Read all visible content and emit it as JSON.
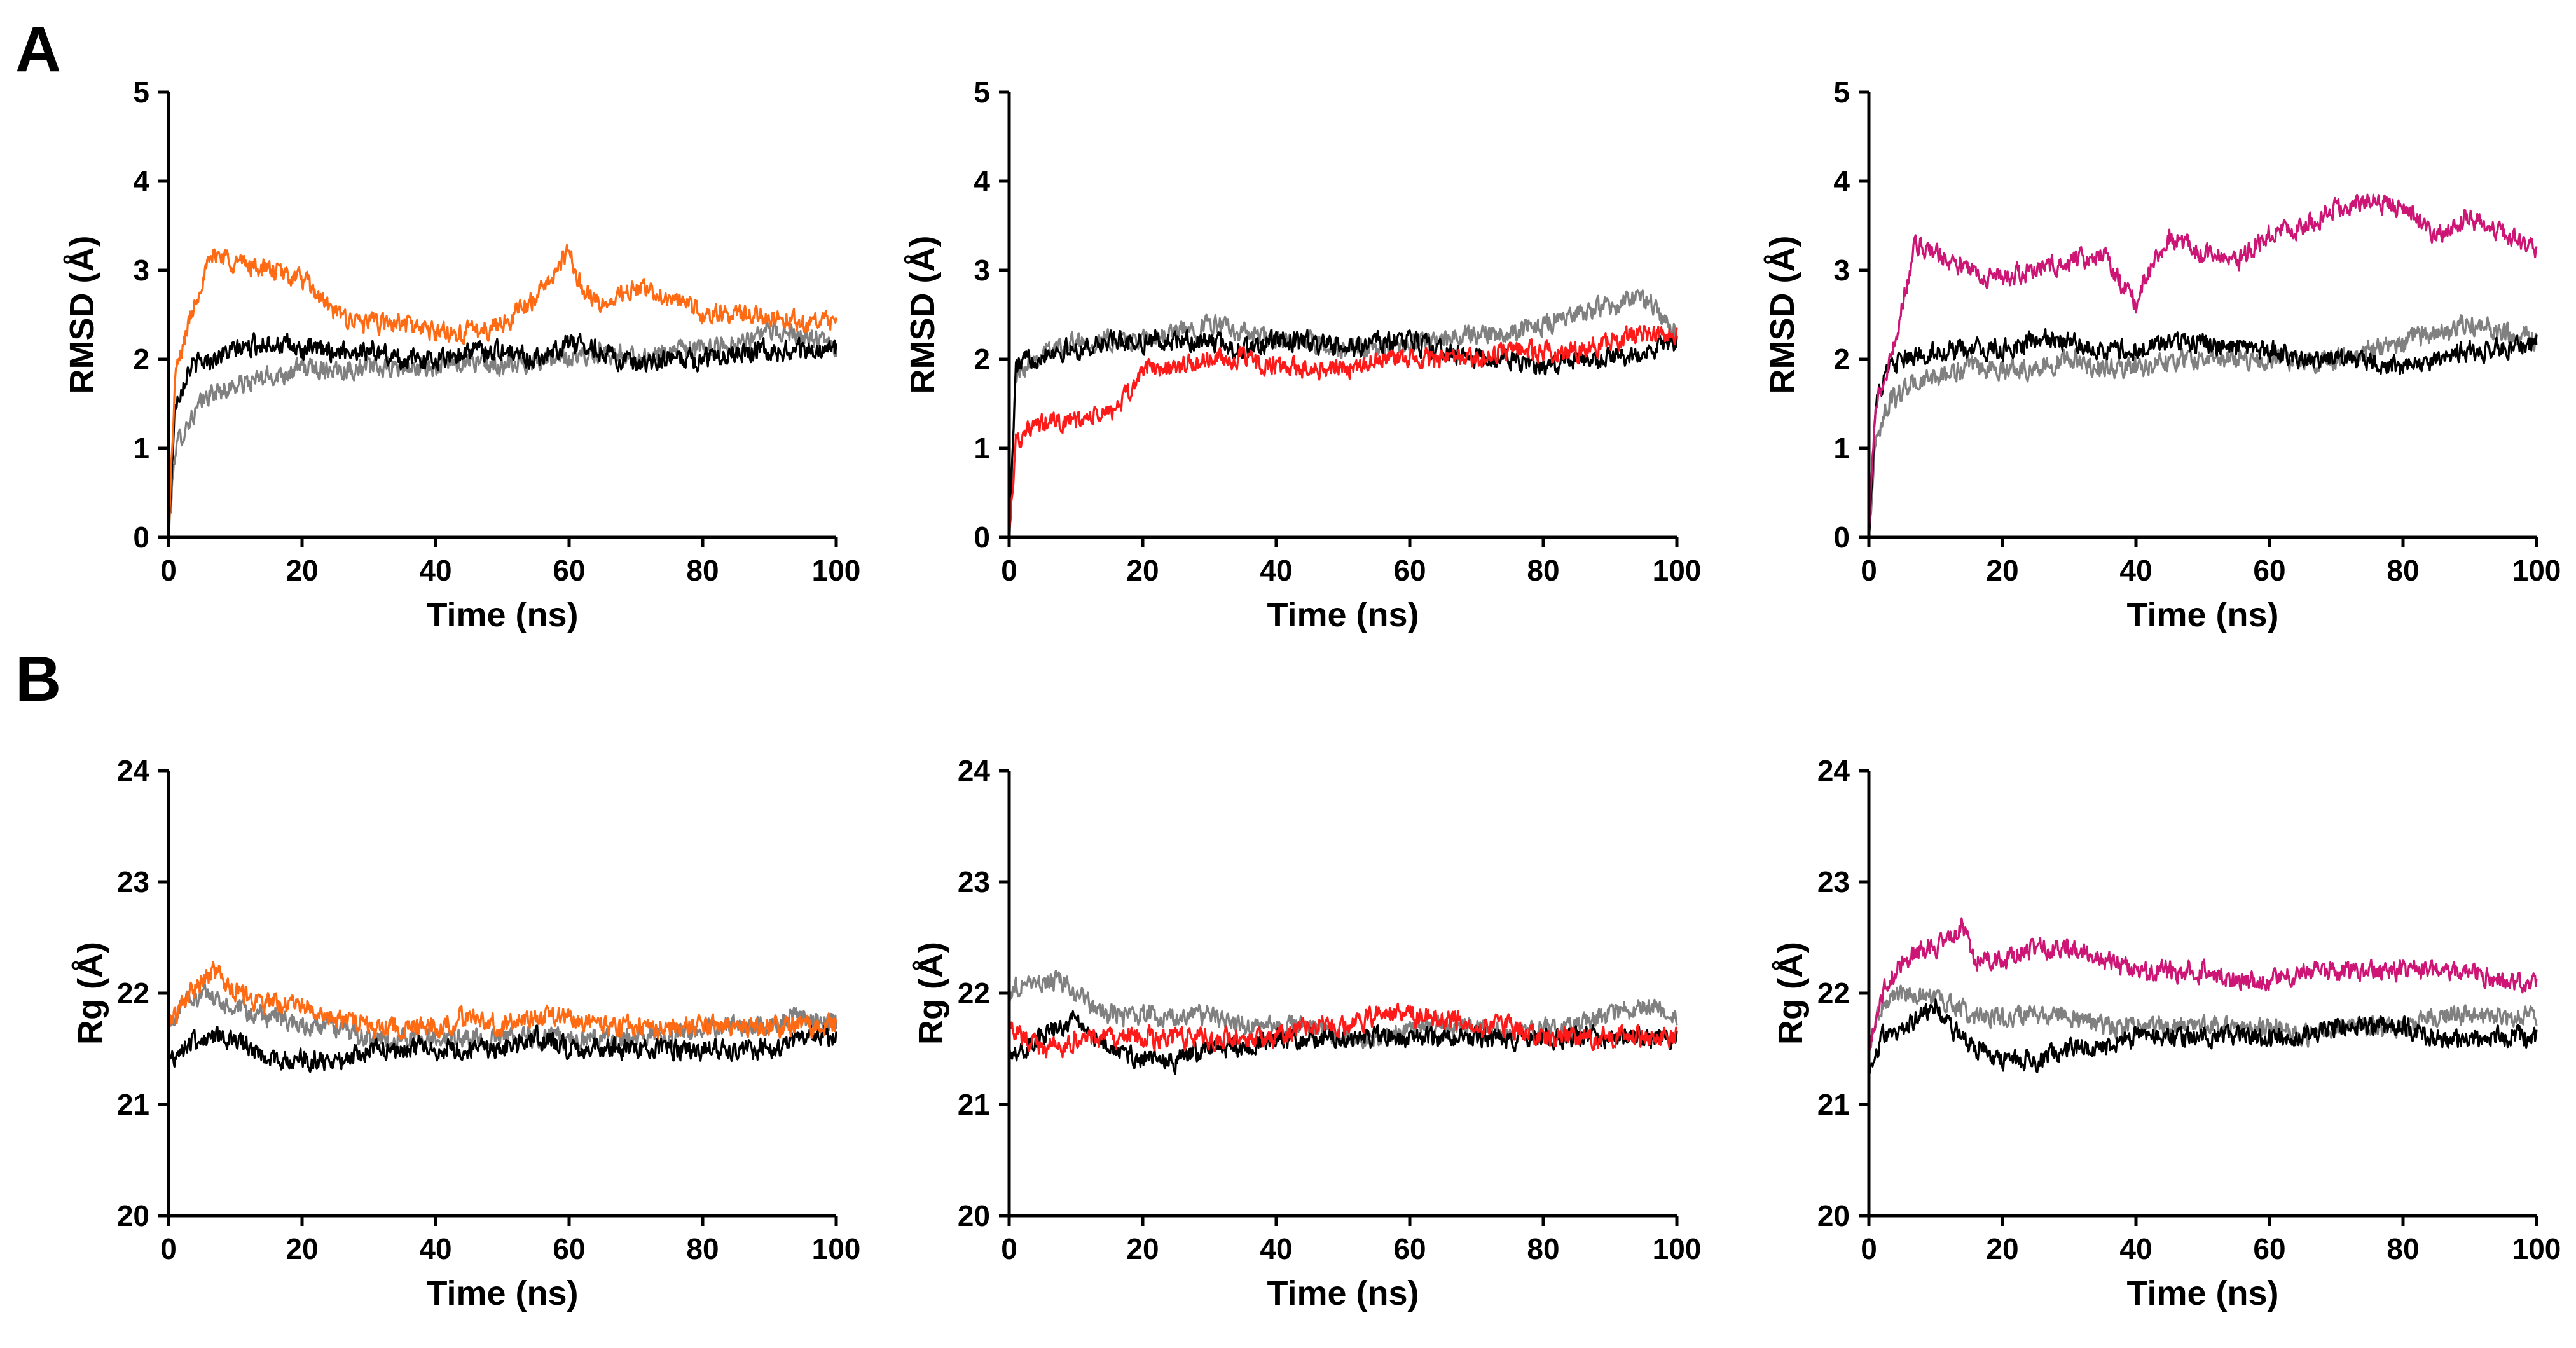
{
  "panel_labels": {
    "a": "A",
    "b": "B"
  },
  "colors": {
    "black": "#000000",
    "gray": "#808080",
    "orange": "#ff6a13",
    "red": "#ff1a1a",
    "magenta": "#cc1575"
  },
  "chart_data": [
    {
      "type": "line",
      "panel": "A",
      "column": 1,
      "title": "",
      "xlabel": "Time (ns)",
      "ylabel": "RMSD (Å)",
      "xlim": [
        0,
        100
      ],
      "ylim": [
        0,
        5
      ],
      "xticks": [
        "0",
        "20",
        "40",
        "60",
        "80",
        "100"
      ],
      "yticks": [
        "0",
        "1",
        "2",
        "3",
        "4",
        "5"
      ],
      "series": [
        {
          "name": "gray",
          "color": "#808080",
          "x": [
            0,
            1,
            3,
            6,
            10,
            15,
            20,
            25,
            30,
            35,
            40,
            45,
            50,
            55,
            60,
            65,
            70,
            75,
            80,
            85,
            90,
            95,
            100
          ],
          "y": [
            0.0,
            1.0,
            1.3,
            1.6,
            1.7,
            1.8,
            1.9,
            1.9,
            1.9,
            1.9,
            1.9,
            2.0,
            1.9,
            2.0,
            2.0,
            2.1,
            2.0,
            2.1,
            2.1,
            2.2,
            2.3,
            2.3,
            2.1
          ]
        },
        {
          "name": "black",
          "color": "#000000",
          "x": [
            0,
            1,
            3,
            6,
            10,
            15,
            20,
            25,
            30,
            35,
            40,
            45,
            50,
            55,
            60,
            65,
            70,
            75,
            80,
            85,
            90,
            95,
            100
          ],
          "y": [
            0.0,
            1.5,
            1.9,
            2.0,
            2.1,
            2.2,
            2.1,
            2.1,
            2.1,
            2.0,
            2.0,
            2.1,
            2.1,
            2.0,
            2.2,
            2.1,
            1.9,
            2.0,
            2.0,
            2.1,
            2.1,
            2.1,
            2.1
          ]
        },
        {
          "name": "orange",
          "color": "#ff6a13",
          "x": [
            0,
            1,
            3,
            5,
            7,
            10,
            15,
            20,
            25,
            30,
            35,
            40,
            45,
            50,
            55,
            58,
            60,
            62,
            65,
            70,
            75,
            80,
            85,
            90,
            95,
            100
          ],
          "y": [
            0.0,
            1.8,
            2.4,
            2.9,
            3.2,
            3.1,
            3.0,
            2.9,
            2.5,
            2.4,
            2.4,
            2.3,
            2.3,
            2.4,
            2.7,
            3.0,
            3.2,
            2.8,
            2.6,
            2.8,
            2.7,
            2.5,
            2.5,
            2.5,
            2.4,
            2.4
          ]
        }
      ]
    },
    {
      "type": "line",
      "panel": "A",
      "column": 2,
      "title": "",
      "xlabel": "Time (ns)",
      "ylabel": "RMSD (Å)",
      "xlim": [
        0,
        100
      ],
      "ylim": [
        0,
        5
      ],
      "xticks": [
        "0",
        "20",
        "40",
        "60",
        "80",
        "100"
      ],
      "yticks": [
        "0",
        "1",
        "2",
        "3",
        "4",
        "5"
      ],
      "series": [
        {
          "name": "gray",
          "color": "#808080",
          "x": [
            0,
            1,
            3,
            6,
            10,
            15,
            20,
            25,
            30,
            35,
            40,
            45,
            50,
            55,
            60,
            65,
            70,
            75,
            80,
            85,
            90,
            95,
            100
          ],
          "y": [
            0.0,
            1.8,
            2.0,
            2.1,
            2.2,
            2.2,
            2.2,
            2.3,
            2.4,
            2.3,
            2.2,
            2.2,
            2.1,
            2.1,
            2.2,
            2.2,
            2.3,
            2.3,
            2.4,
            2.5,
            2.6,
            2.7,
            2.3
          ]
        },
        {
          "name": "black",
          "color": "#000000",
          "x": [
            0,
            1,
            3,
            6,
            10,
            15,
            20,
            25,
            30,
            35,
            40,
            45,
            50,
            55,
            60,
            65,
            70,
            75,
            80,
            85,
            90,
            95,
            100
          ],
          "y": [
            0.0,
            1.9,
            2.0,
            2.1,
            2.1,
            2.2,
            2.2,
            2.2,
            2.2,
            2.1,
            2.2,
            2.2,
            2.1,
            2.2,
            2.2,
            2.1,
            2.0,
            2.0,
            1.9,
            2.0,
            2.0,
            2.1,
            2.2
          ]
        },
        {
          "name": "red",
          "color": "#ff1a1a",
          "x": [
            0,
            1,
            3,
            6,
            10,
            15,
            18,
            20,
            25,
            30,
            35,
            40,
            45,
            50,
            55,
            60,
            65,
            70,
            75,
            80,
            85,
            90,
            95,
            100
          ],
          "y": [
            0.0,
            1.1,
            1.2,
            1.3,
            1.3,
            1.4,
            1.6,
            1.9,
            1.9,
            2.0,
            2.0,
            1.9,
            1.9,
            1.9,
            2.0,
            2.0,
            2.0,
            2.0,
            2.1,
            2.1,
            2.1,
            2.2,
            2.3,
            2.3
          ]
        }
      ]
    },
    {
      "type": "line",
      "panel": "A",
      "column": 3,
      "title": "",
      "xlabel": "Time (ns)",
      "ylabel": "RMSD (Å)",
      "xlim": [
        0,
        100
      ],
      "ylim": [
        0,
        5
      ],
      "xticks": [
        "0",
        "20",
        "40",
        "60",
        "80",
        "100"
      ],
      "yticks": [
        "0",
        "1",
        "2",
        "3",
        "4",
        "5"
      ],
      "series": [
        {
          "name": "gray",
          "color": "#808080",
          "x": [
            0,
            1,
            3,
            6,
            10,
            15,
            20,
            25,
            30,
            35,
            40,
            45,
            50,
            55,
            60,
            65,
            70,
            75,
            80,
            85,
            90,
            95,
            100
          ],
          "y": [
            0.0,
            1.1,
            1.5,
            1.7,
            1.8,
            1.9,
            1.9,
            1.9,
            2.0,
            1.9,
            1.9,
            2.0,
            2.0,
            2.0,
            2.0,
            2.0,
            2.0,
            2.1,
            2.2,
            2.3,
            2.4,
            2.3,
            2.2
          ]
        },
        {
          "name": "black",
          "color": "#000000",
          "x": [
            0,
            1,
            3,
            6,
            10,
            15,
            20,
            25,
            30,
            35,
            40,
            45,
            50,
            55,
            60,
            65,
            70,
            75,
            80,
            85,
            90,
            95,
            100
          ],
          "y": [
            0.0,
            1.5,
            1.9,
            2.0,
            2.1,
            2.1,
            2.1,
            2.2,
            2.2,
            2.1,
            2.1,
            2.2,
            2.2,
            2.1,
            2.1,
            2.0,
            2.0,
            2.0,
            1.9,
            2.0,
            2.1,
            2.1,
            2.2
          ]
        },
        {
          "name": "magenta",
          "color": "#cc1575",
          "x": [
            0,
            1,
            3,
            5,
            7,
            10,
            15,
            20,
            25,
            30,
            35,
            40,
            42,
            45,
            50,
            55,
            60,
            65,
            70,
            75,
            80,
            85,
            90,
            95,
            100
          ],
          "y": [
            0.0,
            1.5,
            1.9,
            2.6,
            3.3,
            3.2,
            3.0,
            2.9,
            3.0,
            3.1,
            3.2,
            2.6,
            3.0,
            3.4,
            3.2,
            3.1,
            3.4,
            3.5,
            3.7,
            3.8,
            3.7,
            3.4,
            3.6,
            3.4,
            3.2
          ]
        }
      ]
    },
    {
      "type": "line",
      "panel": "B",
      "column": 1,
      "title": "",
      "xlabel": "Time (ns)",
      "ylabel": "Rg (Å)",
      "xlim": [
        0,
        100
      ],
      "ylim": [
        20,
        24
      ],
      "xticks": [
        "0",
        "20",
        "40",
        "60",
        "80",
        "100"
      ],
      "yticks": [
        "20",
        "21",
        "22",
        "23",
        "24"
      ],
      "series": [
        {
          "name": "gray",
          "color": "#808080",
          "x": [
            0,
            2,
            5,
            8,
            12,
            16,
            20,
            25,
            30,
            35,
            40,
            45,
            50,
            55,
            60,
            65,
            70,
            75,
            80,
            85,
            90,
            95,
            100
          ],
          "y": [
            21.7,
            21.9,
            22.0,
            21.9,
            21.8,
            21.8,
            21.7,
            21.7,
            21.6,
            21.6,
            21.6,
            21.6,
            21.6,
            21.6,
            21.6,
            21.6,
            21.6,
            21.6,
            21.7,
            21.7,
            21.7,
            21.8,
            21.7
          ]
        },
        {
          "name": "black",
          "color": "#000000",
          "x": [
            0,
            2,
            5,
            8,
            12,
            16,
            20,
            25,
            30,
            35,
            40,
            45,
            50,
            55,
            60,
            65,
            70,
            75,
            80,
            85,
            90,
            95,
            100
          ],
          "y": [
            21.4,
            21.5,
            21.6,
            21.6,
            21.5,
            21.4,
            21.4,
            21.4,
            21.5,
            21.5,
            21.5,
            21.5,
            21.5,
            21.6,
            21.5,
            21.5,
            21.5,
            21.5,
            21.5,
            21.5,
            21.5,
            21.6,
            21.6
          ]
        },
        {
          "name": "orange",
          "color": "#ff6a13",
          "x": [
            0,
            2,
            5,
            7,
            10,
            15,
            20,
            25,
            30,
            35,
            40,
            45,
            50,
            55,
            60,
            65,
            70,
            75,
            80,
            85,
            90,
            95,
            100
          ],
          "y": [
            21.7,
            21.9,
            22.1,
            22.2,
            22.0,
            21.9,
            21.9,
            21.8,
            21.7,
            21.7,
            21.7,
            21.8,
            21.7,
            21.8,
            21.8,
            21.7,
            21.7,
            21.7,
            21.7,
            21.7,
            21.7,
            21.7,
            21.7
          ]
        }
      ]
    },
    {
      "type": "line",
      "panel": "B",
      "column": 2,
      "title": "",
      "xlabel": "Time (ns)",
      "ylabel": "Rg (Å)",
      "xlim": [
        0,
        100
      ],
      "ylim": [
        20,
        24
      ],
      "xticks": [
        "0",
        "20",
        "40",
        "60",
        "80",
        "100"
      ],
      "yticks": [
        "20",
        "21",
        "22",
        "23",
        "24"
      ],
      "series": [
        {
          "name": "gray",
          "color": "#808080",
          "x": [
            0,
            2,
            5,
            8,
            10,
            12,
            16,
            20,
            25,
            30,
            35,
            40,
            45,
            50,
            55,
            60,
            65,
            70,
            75,
            80,
            85,
            90,
            95,
            100
          ],
          "y": [
            22.0,
            22.1,
            22.1,
            22.1,
            22.0,
            21.9,
            21.8,
            21.8,
            21.8,
            21.8,
            21.7,
            21.7,
            21.7,
            21.6,
            21.6,
            21.7,
            21.7,
            21.7,
            21.6,
            21.7,
            21.7,
            21.8,
            21.9,
            21.8
          ]
        },
        {
          "name": "black",
          "color": "#000000",
          "x": [
            0,
            2,
            5,
            8,
            10,
            12,
            16,
            20,
            25,
            30,
            35,
            40,
            45,
            50,
            55,
            60,
            65,
            70,
            75,
            80,
            85,
            90,
            95,
            100
          ],
          "y": [
            21.5,
            21.5,
            21.6,
            21.7,
            21.8,
            21.6,
            21.5,
            21.4,
            21.4,
            21.5,
            21.5,
            21.6,
            21.6,
            21.6,
            21.6,
            21.6,
            21.6,
            21.6,
            21.6,
            21.6,
            21.6,
            21.6,
            21.6,
            21.6
          ]
        },
        {
          "name": "red",
          "color": "#ff1a1a",
          "x": [
            0,
            2,
            5,
            8,
            10,
            12,
            16,
            20,
            25,
            30,
            35,
            40,
            45,
            50,
            55,
            60,
            65,
            70,
            75,
            80,
            85,
            90,
            95,
            100
          ],
          "y": [
            21.7,
            21.6,
            21.5,
            21.5,
            21.6,
            21.6,
            21.6,
            21.6,
            21.6,
            21.6,
            21.6,
            21.6,
            21.7,
            21.7,
            21.8,
            21.8,
            21.8,
            21.7,
            21.7,
            21.6,
            21.6,
            21.6,
            21.6,
            21.6
          ]
        }
      ]
    },
    {
      "type": "line",
      "panel": "B",
      "column": 3,
      "title": "",
      "xlabel": "Time (ns)",
      "ylabel": "Rg (Å)",
      "xlim": [
        0,
        100
      ],
      "ylim": [
        20,
        24
      ],
      "xticks": [
        "0",
        "20",
        "40",
        "60",
        "80",
        "100"
      ],
      "yticks": [
        "20",
        "21",
        "22",
        "23",
        "24"
      ],
      "series": [
        {
          "name": "gray",
          "color": "#808080",
          "x": [
            0,
            2,
            5,
            8,
            12,
            16,
            20,
            25,
            30,
            35,
            40,
            45,
            50,
            55,
            60,
            65,
            70,
            75,
            80,
            85,
            90,
            95,
            100
          ],
          "y": [
            21.5,
            21.9,
            22.0,
            22.0,
            21.9,
            21.8,
            21.8,
            21.8,
            21.8,
            21.7,
            21.7,
            21.7,
            21.7,
            21.7,
            21.7,
            21.6,
            21.7,
            21.7,
            21.7,
            21.8,
            21.8,
            21.8,
            21.8
          ]
        },
        {
          "name": "black",
          "color": "#000000",
          "x": [
            0,
            2,
            5,
            8,
            10,
            12,
            16,
            20,
            25,
            30,
            35,
            40,
            45,
            50,
            55,
            60,
            65,
            70,
            75,
            80,
            85,
            90,
            95,
            100
          ],
          "y": [
            21.3,
            21.6,
            21.7,
            21.8,
            21.9,
            21.7,
            21.5,
            21.4,
            21.4,
            21.5,
            21.5,
            21.6,
            21.6,
            21.6,
            21.6,
            21.6,
            21.6,
            21.7,
            21.7,
            21.7,
            21.6,
            21.6,
            21.6,
            21.6
          ]
        },
        {
          "name": "magenta",
          "color": "#cc1575",
          "x": [
            0,
            2,
            5,
            8,
            10,
            12,
            14,
            16,
            20,
            25,
            30,
            35,
            40,
            45,
            50,
            55,
            60,
            65,
            70,
            75,
            80,
            85,
            90,
            95,
            100
          ],
          "y": [
            21.5,
            22.0,
            22.3,
            22.4,
            22.4,
            22.5,
            22.6,
            22.3,
            22.3,
            22.4,
            22.4,
            22.3,
            22.2,
            22.2,
            22.2,
            22.1,
            22.1,
            22.2,
            22.2,
            22.2,
            22.2,
            22.2,
            22.2,
            22.1,
            22.1
          ]
        }
      ]
    }
  ]
}
